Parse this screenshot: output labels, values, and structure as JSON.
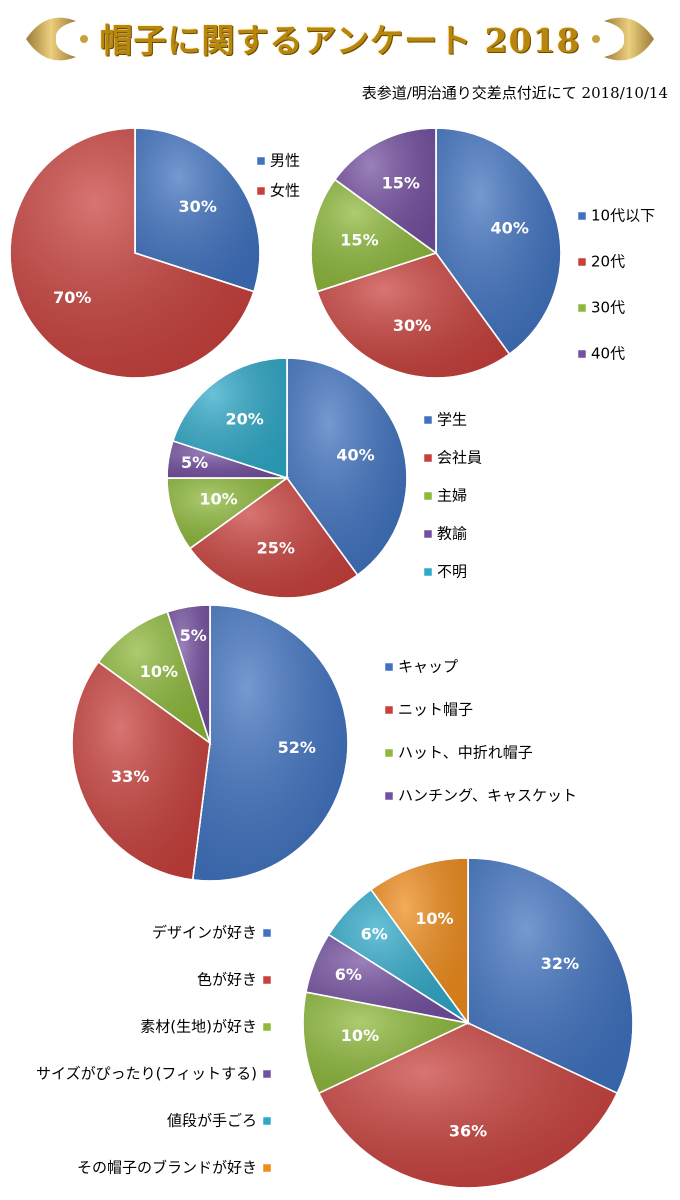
{
  "header": {
    "title": "帽子に関するアンケート 2018",
    "subtitle": "表参道/明治通り交差点付近にて 2018/10/14"
  },
  "colors": {
    "blue": "#3f72c0",
    "red": "#c8403c",
    "green": "#8db83a",
    "purple": "#7450a0",
    "cyan": "#2fa9c8",
    "orange": "#ef8c1c",
    "gold": "#b8860b"
  },
  "chart_data": [
    {
      "type": "pie",
      "labels": [
        "男性",
        "女性"
      ],
      "values": [
        30,
        70
      ],
      "value_labels": [
        "30%",
        "70%"
      ]
    },
    {
      "type": "pie",
      "labels": [
        "10代以下",
        "20代",
        "30代",
        "40代"
      ],
      "values": [
        40,
        30,
        15,
        15
      ],
      "value_labels": [
        "40%",
        "30%",
        "15%",
        "15%"
      ]
    },
    {
      "type": "pie",
      "labels": [
        "学生",
        "会社員",
        "主婦",
        "教諭",
        "不明"
      ],
      "values": [
        40,
        25,
        10,
        5,
        20
      ],
      "value_labels": [
        "40%",
        "25%",
        "10%",
        "5%",
        "20%"
      ]
    },
    {
      "type": "pie",
      "labels": [
        "キャップ",
        "ニット帽子",
        "ハット、中折れ帽子",
        "ハンチング、キャスケット"
      ],
      "values": [
        52,
        33,
        10,
        5
      ],
      "value_labels": [
        "52%",
        "33%",
        "10%",
        "5%"
      ]
    },
    {
      "type": "pie",
      "labels": [
        "デザインが好き",
        "色が好き",
        "素材(生地)が好き",
        "サイズがぴったり(フィットする)",
        "値段が手ごろ",
        "その帽子のブランドが好き"
      ],
      "values": [
        32,
        36,
        10,
        6,
        6,
        10
      ],
      "value_labels": [
        "32%",
        "36%",
        "10%",
        "6%",
        "6%",
        "10%"
      ]
    }
  ]
}
